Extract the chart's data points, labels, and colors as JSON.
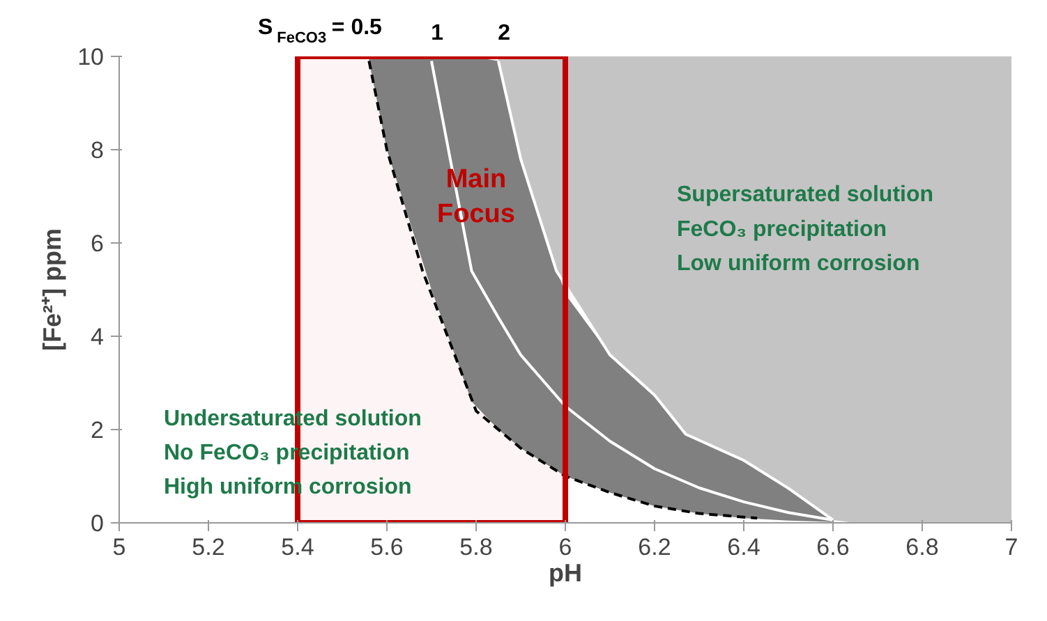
{
  "chart_data": {
    "type": "line",
    "xlabel": "pH",
    "ylabel": "[Fe²⁺] ppm",
    "xlim": [
      5,
      7
    ],
    "ylim": [
      0,
      10
    ],
    "xticks": [
      5,
      5.2,
      5.4,
      5.6,
      5.8,
      6,
      6.2,
      6.4,
      6.6,
      6.8,
      7
    ],
    "yticks": [
      0,
      2,
      4,
      6,
      8,
      10
    ],
    "grid": false,
    "series": [
      {
        "name": "S$_{FeCO3}$ = 0.5",
        "color": "#000000",
        "line_style": "dashed",
        "x": [
          5.56,
          5.6,
          5.68,
          5.8,
          5.9,
          6.0,
          6.1,
          6.2,
          6.3,
          6.43
        ],
        "values": [
          9.9,
          8.0,
          5.4,
          2.4,
          1.6,
          1.0,
          0.65,
          0.36,
          0.2,
          0.1
        ]
      },
      {
        "name": "1",
        "color": "#ffffff",
        "line_style": "solid",
        "x": [
          5.56,
          5.6,
          5.65,
          5.7,
          5.79,
          5.85,
          5.9,
          6.0,
          6.1,
          6.2,
          6.3,
          6.4,
          6.5,
          6.6
        ],
        "values": [
          null,
          null,
          null,
          9.9,
          5.4,
          4.4,
          3.6,
          2.5,
          1.75,
          1.16,
          0.75,
          0.45,
          0.22,
          0.06
        ],
        "lower": [
          9.9,
          8.0,
          6.5,
          5.0,
          2.6,
          2.0,
          1.6,
          1.0,
          0.65,
          0.36,
          0.2,
          0.1,
          0.05,
          0.02
        ],
        "upper": [
          10,
          10,
          10,
          10,
          10,
          9.9,
          7.8,
          4.9,
          3.6,
          2.7,
          1.8,
          1.34,
          0.74,
          0.06
        ]
      },
      {
        "name": "2",
        "color": "#ffffff",
        "line_style": "solid",
        "x": [
          5.85,
          5.9,
          5.98,
          6.1,
          6.2,
          6.27,
          6.4,
          6.5,
          6.6,
          6.65,
          7
        ],
        "values": [
          9.9,
          7.8,
          5.4,
          3.6,
          2.74,
          1.9,
          1.34,
          0.74,
          0.06,
          null,
          null
        ],
        "lower": [
          9.9,
          7.8,
          5.4,
          3.6,
          2.74,
          1.9,
          1.34,
          0.74,
          0.06,
          0,
          0
        ],
        "upper": [
          10,
          10,
          10,
          10,
          10,
          10,
          10,
          10,
          10,
          10,
          10
        ]
      }
    ],
    "bands": [
      {
        "axis": "x",
        "from": 5.4,
        "to": 6,
        "label": "Main\nFocus",
        "color": "#c00000"
      }
    ],
    "annotations": [
      "Undersaturated solution\nNo FeCO₃ precipitation\nHigh uniform corrosion",
      "Supersaturated solution\nFeCO₃ precipitation\nLow uniform corrosion"
    ]
  }
}
